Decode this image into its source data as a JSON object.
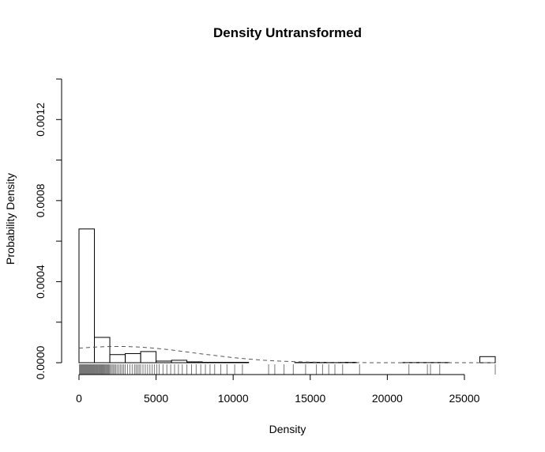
{
  "chart_data": {
    "type": "histogram",
    "title": "Density Untransformed",
    "xlabel": "Density",
    "ylabel": "Probability Density",
    "xlim": [
      0,
      27000
    ],
    "ylim": [
      0,
      0.0014
    ],
    "x_ticks": [
      0,
      5000,
      10000,
      15000,
      20000,
      25000
    ],
    "x_tick_labels": [
      "0",
      "5000",
      "10000",
      "15000",
      "20000",
      "25000"
    ],
    "y_ticks": [
      0,
      0.0002,
      0.0004,
      0.0006,
      0.0008,
      0.001,
      0.0012,
      0.0014
    ],
    "y_tick_labels": [
      "0.0000",
      "",
      "0.0004",
      "",
      "0.0008",
      "",
      "0.0012",
      ""
    ],
    "bin_width": 1000,
    "bins": [
      {
        "start": 0,
        "end": 1000,
        "density": 0.00066
      },
      {
        "start": 1000,
        "end": 2000,
        "density": 0.000125
      },
      {
        "start": 2000,
        "end": 3000,
        "density": 4e-05
      },
      {
        "start": 3000,
        "end": 4000,
        "density": 4.5e-05
      },
      {
        "start": 4000,
        "end": 5000,
        "density": 5.5e-05
      },
      {
        "start": 5000,
        "end": 6000,
        "density": 8e-06
      },
      {
        "start": 6000,
        "end": 7000,
        "density": 1.2e-05
      },
      {
        "start": 7000,
        "end": 8000,
        "density": 4e-06
      },
      {
        "start": 8000,
        "end": 9000,
        "density": 2e-06
      },
      {
        "start": 9000,
        "end": 10000,
        "density": 2e-06
      },
      {
        "start": 10000,
        "end": 11000,
        "density": 2e-06
      },
      {
        "start": 11000,
        "end": 12000,
        "density": 0
      },
      {
        "start": 12000,
        "end": 13000,
        "density": 0
      },
      {
        "start": 13000,
        "end": 14000,
        "density": 0
      },
      {
        "start": 14000,
        "end": 15000,
        "density": 1e-06
      },
      {
        "start": 15000,
        "end": 16000,
        "density": 2e-06
      },
      {
        "start": 16000,
        "end": 17000,
        "density": 1e-06
      },
      {
        "start": 17000,
        "end": 18000,
        "density": 2e-06
      },
      {
        "start": 18000,
        "end": 19000,
        "density": 0
      },
      {
        "start": 19000,
        "end": 20000,
        "density": 0
      },
      {
        "start": 20000,
        "end": 21000,
        "density": 0
      },
      {
        "start": 21000,
        "end": 22000,
        "density": 1e-06
      },
      {
        "start": 22000,
        "end": 23000,
        "density": 1e-06
      },
      {
        "start": 23000,
        "end": 24000,
        "density": 1e-06
      },
      {
        "start": 24000,
        "end": 25000,
        "density": 0
      },
      {
        "start": 25000,
        "end": 26000,
        "density": 0
      },
      {
        "start": 26000,
        "end": 27000,
        "density": 3e-05
      }
    ],
    "normal_curve": {
      "style": "dashed",
      "color": "#555555",
      "x": [
        0,
        1000,
        2000,
        3000,
        4000,
        5000,
        6000,
        7000,
        8000,
        9000,
        10000,
        11000,
        12000,
        13000,
        14000,
        15000,
        16000,
        17000,
        18000,
        19000,
        20000,
        21000,
        22000,
        23000,
        24000,
        25000,
        26000,
        27000
      ],
      "y": [
        7.2e-05,
        7.7e-05,
        8e-05,
        8e-05,
        7.7e-05,
        7.1e-05,
        6.3e-05,
        5.3e-05,
        4.3e-05,
        3.4e-05,
        2.5e-05,
        1.8e-05,
        1.2e-05,
        8e-06,
        5e-06,
        3e-06,
        1.5e-06,
        8e-07,
        4e-07,
        2e-07,
        1e-07,
        0,
        0,
        0,
        0,
        0,
        0,
        0
      ]
    },
    "rug": {
      "color": "#777777",
      "values": [
        30,
        60,
        90,
        120,
        150,
        180,
        210,
        240,
        270,
        300,
        330,
        360,
        390,
        420,
        450,
        480,
        510,
        540,
        570,
        600,
        630,
        660,
        690,
        720,
        750,
        780,
        810,
        840,
        870,
        900,
        930,
        960,
        990,
        1020,
        1060,
        1100,
        1140,
        1180,
        1220,
        1260,
        1300,
        1340,
        1380,
        1420,
        1460,
        1500,
        1540,
        1580,
        1620,
        1660,
        1700,
        1750,
        1800,
        1850,
        1900,
        1950,
        2000,
        2080,
        2160,
        2240,
        2320,
        2400,
        2500,
        2600,
        2700,
        2800,
        2900,
        3000,
        3150,
        3300,
        3450,
        3600,
        3700,
        3800,
        3900,
        4000,
        4150,
        4300,
        4450,
        4600,
        4750,
        4900,
        5050,
        5200,
        5450,
        5700,
        5950,
        6200,
        6450,
        6700,
        7000,
        7300,
        7600,
        7900,
        8200,
        8500,
        8800,
        9200,
        9600,
        10100,
        10600,
        12300,
        12700,
        13300,
        13900,
        14700,
        15400,
        15800,
        16200,
        16600,
        17100,
        18200,
        21400,
        22600,
        22800,
        23400,
        27000
      ]
    }
  }
}
